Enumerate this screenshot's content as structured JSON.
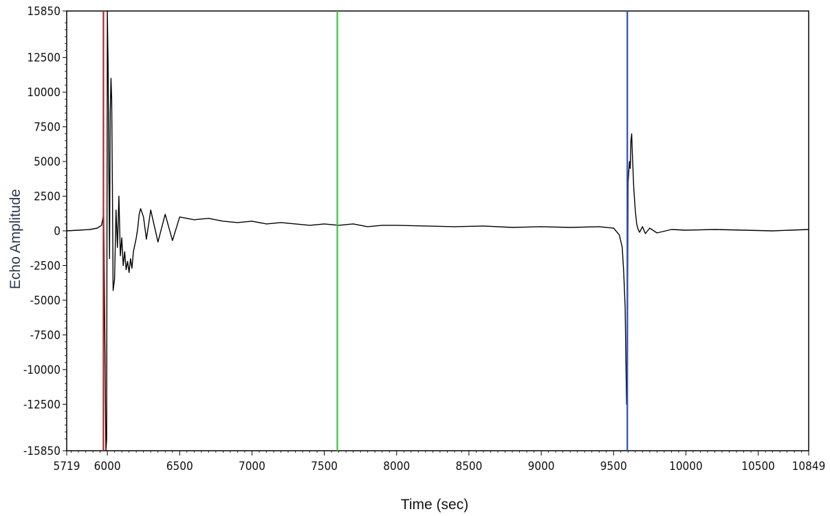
{
  "chart_data": {
    "type": "line",
    "title": "",
    "xlabel": "Time (sec)",
    "ylabel": "Echo Amplitude",
    "xlim": [
      5719,
      10849
    ],
    "ylim": [
      -15850,
      15850
    ],
    "x_ticks": [
      5719,
      6000,
      6500,
      7000,
      7500,
      8000,
      8500,
      9000,
      9500,
      10000,
      10500,
      10849
    ],
    "x_tick_labels": [
      "5719",
      "6000",
      "6500",
      "7000",
      "7500",
      "8000",
      "8500",
      "9000",
      "9500",
      "10000",
      "10500",
      "10849"
    ],
    "y_ticks": [
      15850,
      12500,
      10000,
      7500,
      5000,
      2500,
      0,
      -2500,
      -5000,
      -7500,
      -10000,
      -12500,
      -15850
    ],
    "y_tick_labels": [
      "15850",
      "12500",
      "10000",
      "7500",
      "5000",
      "2500",
      "0",
      "-2500",
      "-5000",
      "-7500",
      "-10000",
      "-12500",
      "-15850"
    ],
    "grid": false,
    "legend": "none",
    "series": [
      {
        "color": "#000000",
        "x": [
          5719,
          5800,
          5880,
          5930,
          5960,
          5975,
          5985,
          5990,
          5995,
          6000,
          6005,
          6010,
          6015,
          6020,
          6025,
          6030,
          6035,
          6040,
          6050,
          6060,
          6070,
          6080,
          6090,
          6100,
          6110,
          6120,
          6130,
          6140,
          6150,
          6160,
          6170,
          6180,
          6190,
          6200,
          6210,
          6220,
          6230,
          6250,
          6270,
          6300,
          6350,
          6400,
          6450,
          6500,
          6600,
          6700,
          6800,
          6900,
          7000,
          7100,
          7200,
          7300,
          7400,
          7500,
          7600,
          7700,
          7800,
          7900,
          8000,
          8200,
          8400,
          8600,
          8800,
          9000,
          9200,
          9400,
          9500,
          9540,
          9560,
          9570,
          9580,
          9585,
          9590,
          9595,
          9600,
          9605,
          9610,
          9615,
          9620,
          9625,
          9630,
          9640,
          9650,
          9660,
          9670,
          9680,
          9700,
          9720,
          9750,
          9800,
          9900,
          10000,
          10200,
          10400,
          10600,
          10849
        ],
        "y": [
          0,
          50,
          100,
          200,
          400,
          1200,
          -10000,
          -15850,
          -15000,
          15850,
          12000,
          5000,
          -2000,
          8500,
          11000,
          9500,
          3000,
          -4300,
          -3500,
          1500,
          -1200,
          2500,
          -1800,
          -500,
          -2500,
          -1500,
          -2800,
          -2200,
          -3000,
          -2000,
          -2700,
          -1500,
          -1000,
          -500,
          200,
          1200,
          1600,
          1000,
          -600,
          1500,
          -800,
          1200,
          -700,
          1000,
          800,
          900,
          700,
          600,
          700,
          500,
          600,
          500,
          400,
          500,
          400,
          500,
          300,
          400,
          400,
          350,
          300,
          350,
          250,
          300,
          250,
          300,
          200,
          -300,
          -1200,
          -3000,
          -5500,
          -9000,
          -12500,
          -12000,
          3500,
          4200,
          5000,
          4500,
          6500,
          7000,
          5500,
          3000,
          1500,
          500,
          100,
          -100,
          300,
          -200,
          200,
          -150,
          100,
          50,
          100,
          50,
          0,
          100
        ]
      }
    ],
    "cursors": [
      {
        "x": 5973,
        "color": "#e01010"
      },
      {
        "x": 7590,
        "color": "#22d322"
      },
      {
        "x": 9595,
        "color": "#1a4fd6"
      }
    ]
  }
}
